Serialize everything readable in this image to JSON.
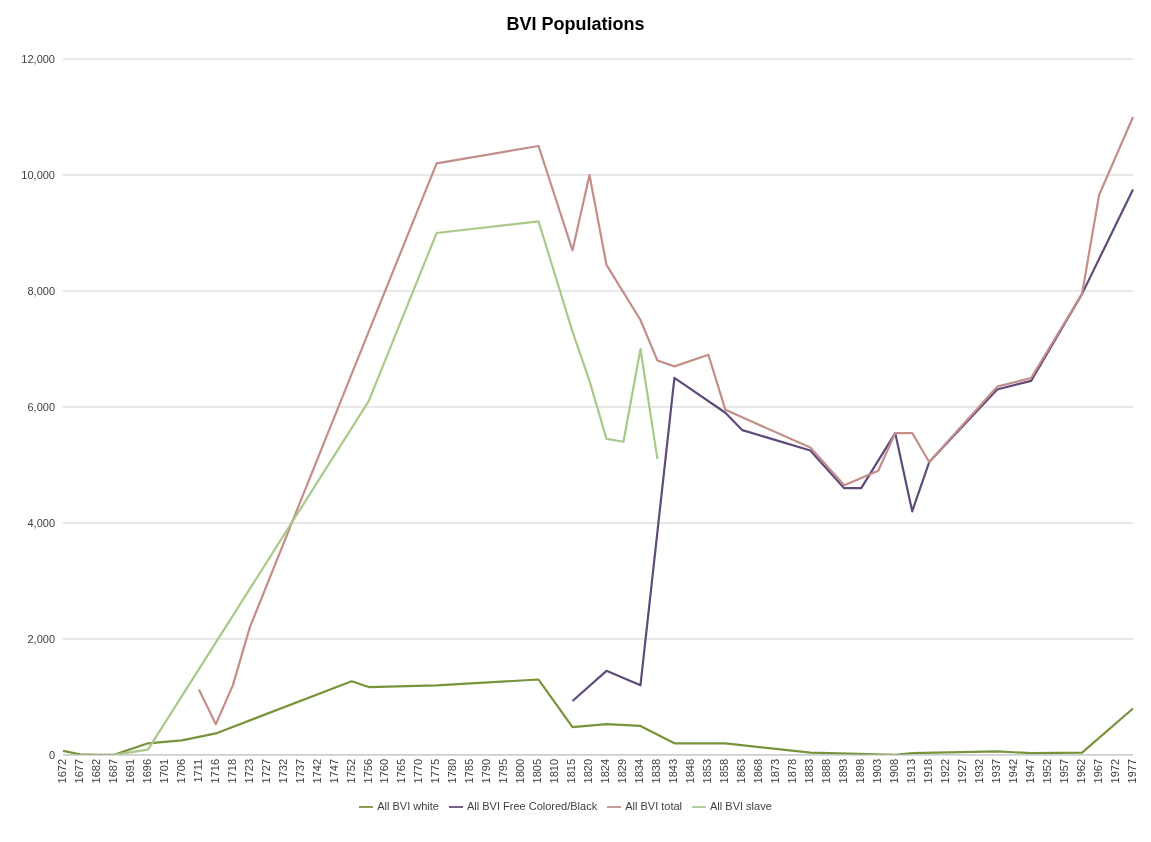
{
  "chart_data": {
    "type": "line",
    "title": "BVI Populations",
    "categories": [
      "1672",
      "1677",
      "1682",
      "1687",
      "1691",
      "1696",
      "1701",
      "1706",
      "1711",
      "1716",
      "1718",
      "1723",
      "1727",
      "1732",
      "1737",
      "1742",
      "1747",
      "1752",
      "1756",
      "1760",
      "1765",
      "1770",
      "1775",
      "1780",
      "1785",
      "1790",
      "1795",
      "1800",
      "1805",
      "1810",
      "1815",
      "1820",
      "1824",
      "1829",
      "1834",
      "1838",
      "1843",
      "1848",
      "1853",
      "1858",
      "1863",
      "1868",
      "1873",
      "1878",
      "1883",
      "1888",
      "1893",
      "1898",
      "1903",
      "1908",
      "1913",
      "1918",
      "1922",
      "1927",
      "1932",
      "1937",
      "1942",
      "1947",
      "1952",
      "1957",
      "1962",
      "1967",
      "1972",
      "1977"
    ],
    "series": [
      {
        "name": "All BVI white",
        "color": "#77933c",
        "values": [
          70,
          10,
          0,
          0,
          null,
          200,
          null,
          250,
          null,
          370,
          null,
          null,
          null,
          null,
          null,
          null,
          null,
          1270,
          1170,
          null,
          null,
          null,
          1200,
          null,
          null,
          null,
          null,
          null,
          1300,
          null,
          480,
          null,
          530,
          null,
          500,
          null,
          200,
          null,
          null,
          200,
          null,
          null,
          null,
          null,
          40,
          null,
          null,
          null,
          null,
          0,
          30,
          null,
          null,
          null,
          null,
          60,
          null,
          30,
          null,
          null,
          40,
          null,
          null,
          800
        ]
      },
      {
        "name": "All BVI Free Colored/Black",
        "color": "#604a7b",
        "values": [
          null,
          null,
          null,
          null,
          null,
          null,
          null,
          null,
          null,
          null,
          null,
          null,
          null,
          null,
          null,
          null,
          null,
          null,
          null,
          null,
          null,
          null,
          null,
          null,
          null,
          null,
          null,
          null,
          null,
          null,
          930,
          null,
          1450,
          null,
          1200,
          null,
          6500,
          null,
          null,
          5900,
          5600,
          null,
          null,
          null,
          5250,
          null,
          4600,
          4600,
          null,
          5550,
          4200,
          5050,
          null,
          null,
          null,
          6300,
          null,
          6450,
          null,
          null,
          7950,
          null,
          null,
          9750
        ]
      },
      {
        "name": "All BVI total",
        "color": "#c38e89",
        "values": [
          null,
          null,
          null,
          null,
          null,
          null,
          null,
          null,
          1130,
          530,
          1200,
          2200,
          null,
          null,
          null,
          null,
          null,
          null,
          7300,
          null,
          null,
          null,
          10200,
          null,
          null,
          null,
          null,
          null,
          10500,
          null,
          8700,
          10000,
          8450,
          null,
          7500,
          6800,
          6700,
          null,
          6900,
          5950,
          null,
          null,
          null,
          null,
          5300,
          null,
          4650,
          null,
          4900,
          5550,
          5550,
          5050,
          null,
          null,
          null,
          6350,
          null,
          6500,
          null,
          null,
          7950,
          9650,
          null,
          11000
        ]
      },
      {
        "name": "All BVI slave",
        "color": "#a9c98a",
        "values": [
          null,
          null,
          null,
          0,
          null,
          90,
          null,
          null,
          null,
          null,
          null,
          null,
          null,
          null,
          null,
          null,
          null,
          null,
          6100,
          null,
          null,
          null,
          9000,
          null,
          null,
          null,
          null,
          null,
          9200,
          null,
          7300,
          6450,
          5450,
          5400,
          7000,
          5100,
          null,
          null,
          null,
          null,
          null,
          null,
          null,
          null,
          null,
          null,
          null,
          null,
          null,
          null,
          null,
          null,
          null,
          null,
          null,
          null,
          null,
          null,
          null,
          null,
          null,
          null,
          null,
          null
        ]
      }
    ],
    "ylim": [
      0,
      12000
    ],
    "yticks": [
      0,
      {
        "value": 2000,
        "label": "2,000"
      },
      {
        "value": 4000,
        "label": "4,000"
      },
      {
        "value": 6000,
        "label": "6,000"
      },
      {
        "value": 8000,
        "label": "8,000"
      },
      {
        "value": 10000,
        "label": "10,000"
      },
      {
        "value": 12000,
        "label": "12,000"
      }
    ],
    "grid": "y",
    "legend": "bottom",
    "marker": "none"
  }
}
